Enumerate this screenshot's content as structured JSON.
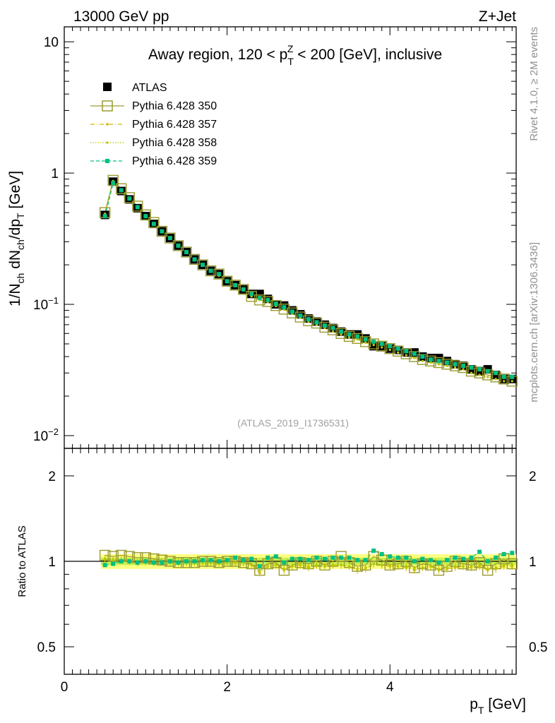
{
  "header": {
    "left_label": "13000 GeV pp",
    "right_label": "Z+Jet"
  },
  "side_labels": {
    "rivet": "Rivet 4.1.0, ≥ 2M events",
    "mcplots": "mcplots.cern.ch [arXiv:1306.3436]"
  },
  "colors": {
    "atlas": "#000000",
    "pythia_350": "#9a9a30",
    "pythia_357": "#d4b800",
    "pythia_358": "#b8c800",
    "pythia_359": "#00c080",
    "band_inner": "#c8f050",
    "band_outer": "#ffff80"
  },
  "chart_data": [
    {
      "type": "scatter",
      "panel": "main",
      "title": "Away region, 120 < p_T^Z < 200 [GeV], inclusive",
      "title_parts": {
        "pre": "Away region, 120 < p",
        "sub": "T",
        "sup": "Z",
        "post": " < 200 [GeV], inclusive"
      },
      "watermark": "(ATLAS_2019_I1736531)",
      "ylabel": "1/N_ch dN_ch/dp_T [GeV]",
      "ylabel_parts": {
        "a": "1/N",
        "a_sub": "ch",
        "b": " dN",
        "b_sub": "ch",
        "c": "/dp",
        "c_sub": "T",
        "d": " [GeV]"
      },
      "yscale": "log",
      "ylim": [
        0.008,
        13
      ],
      "xlim": [
        0,
        5.55
      ],
      "y_tick_labels": [
        {
          "value": 10,
          "label": "10"
        },
        {
          "value": 1,
          "label": "1"
        },
        {
          "value": 0.1,
          "label": "10",
          "exp": "−1"
        },
        {
          "value": 0.01,
          "label": "10",
          "exp": "−2"
        }
      ],
      "legend_position": "top-left",
      "x": [
        0.5,
        0.6,
        0.7,
        0.8,
        0.9,
        1.0,
        1.1,
        1.2,
        1.3,
        1.4,
        1.5,
        1.6,
        1.7,
        1.8,
        1.9,
        2.0,
        2.1,
        2.2,
        2.3,
        2.4,
        2.5,
        2.6,
        2.7,
        2.8,
        2.9,
        3.0,
        3.1,
        3.2,
        3.3,
        3.4,
        3.5,
        3.6,
        3.7,
        3.8,
        3.9,
        4.0,
        4.1,
        4.2,
        4.3,
        4.4,
        4.5,
        4.6,
        4.7,
        4.8,
        4.9,
        5.0,
        5.1,
        5.2,
        5.3,
        5.4,
        5.5
      ],
      "series": [
        {
          "name": "ATLAS",
          "values": [
            0.48,
            0.86,
            0.73,
            0.63,
            0.54,
            0.47,
            0.41,
            0.36,
            0.32,
            0.28,
            0.25,
            0.22,
            0.2,
            0.18,
            0.17,
            0.15,
            0.14,
            0.13,
            0.12,
            0.12,
            0.11,
            0.1,
            0.098,
            0.09,
            0.084,
            0.078,
            0.074,
            0.07,
            0.066,
            0.062,
            0.059,
            0.059,
            0.055,
            0.048,
            0.048,
            0.046,
            0.045,
            0.043,
            0.043,
            0.04,
            0.039,
            0.039,
            0.037,
            0.035,
            0.034,
            0.032,
            0.031,
            0.032,
            0.029,
            0.027,
            0.027
          ]
        },
        {
          "name": "Pythia 6.428 350",
          "values": [
            0.5,
            0.88,
            0.76,
            0.65,
            0.56,
            0.48,
            0.42,
            0.36,
            0.32,
            0.28,
            0.25,
            0.22,
            0.2,
            0.18,
            0.17,
            0.15,
            0.14,
            0.13,
            0.115,
            0.108,
            0.105,
            0.098,
            0.092,
            0.086,
            0.08,
            0.075,
            0.072,
            0.067,
            0.064,
            0.06,
            0.057,
            0.055,
            0.052,
            0.05,
            0.048,
            0.046,
            0.044,
            0.042,
            0.04,
            0.038,
            0.037,
            0.036,
            0.035,
            0.034,
            0.033,
            0.031,
            0.03,
            0.029,
            0.028,
            0.027,
            0.026
          ]
        },
        {
          "name": "Pythia 6.428 357",
          "values": [
            0.49,
            0.87,
            0.74,
            0.64,
            0.55,
            0.47,
            0.41,
            0.36,
            0.32,
            0.28,
            0.25,
            0.22,
            0.2,
            0.18,
            0.165,
            0.15,
            0.14,
            0.13,
            0.115,
            0.108,
            0.104,
            0.097,
            0.091,
            0.085,
            0.079,
            0.074,
            0.07,
            0.066,
            0.062,
            0.059,
            0.056,
            0.054,
            0.051,
            0.049,
            0.047,
            0.045,
            0.043,
            0.041,
            0.039,
            0.037,
            0.036,
            0.035,
            0.034,
            0.033,
            0.032,
            0.03,
            0.029,
            0.028,
            0.027,
            0.026,
            0.026
          ]
        },
        {
          "name": "Pythia 6.428 358",
          "values": [
            0.49,
            0.87,
            0.74,
            0.64,
            0.55,
            0.47,
            0.41,
            0.36,
            0.32,
            0.28,
            0.25,
            0.22,
            0.2,
            0.18,
            0.165,
            0.15,
            0.14,
            0.13,
            0.115,
            0.108,
            0.104,
            0.097,
            0.091,
            0.085,
            0.079,
            0.074,
            0.07,
            0.066,
            0.062,
            0.059,
            0.056,
            0.054,
            0.051,
            0.049,
            0.047,
            0.045,
            0.043,
            0.041,
            0.039,
            0.037,
            0.036,
            0.035,
            0.034,
            0.033,
            0.032,
            0.03,
            0.029,
            0.028,
            0.027,
            0.026,
            0.026
          ]
        },
        {
          "name": "Pythia 6.428 359",
          "values": [
            0.47,
            0.84,
            0.74,
            0.64,
            0.55,
            0.47,
            0.41,
            0.36,
            0.32,
            0.28,
            0.25,
            0.22,
            0.2,
            0.18,
            0.17,
            0.15,
            0.14,
            0.13,
            0.12,
            0.112,
            0.108,
            0.101,
            0.095,
            0.088,
            0.082,
            0.077,
            0.073,
            0.069,
            0.066,
            0.062,
            0.059,
            0.057,
            0.054,
            0.052,
            0.05,
            0.048,
            0.046,
            0.044,
            0.042,
            0.04,
            0.038,
            0.037,
            0.036,
            0.035,
            0.034,
            0.033,
            0.032,
            0.031,
            0.03,
            0.028,
            0.028
          ]
        }
      ]
    },
    {
      "type": "scatter",
      "panel": "ratio",
      "ylabel": "Ratio to ATLAS",
      "xlabel": "p_T [GeV]",
      "xlabel_parts": {
        "a": "p",
        "a_sub": "T",
        "b": " [GeV]"
      },
      "xlim": [
        0,
        5.55
      ],
      "ylim": [
        0.4,
        2.5
      ],
      "yscale": "log",
      "x_ticks": [
        0,
        2,
        4
      ],
      "x_tick_labels": [
        "0",
        "2",
        "4"
      ],
      "y_ticks": [
        0.5,
        1,
        2
      ],
      "y_tick_labels": [
        "0.5",
        "1",
        "2"
      ],
      "band": {
        "inner_halfwidth": 0.03,
        "outer_halfwidth": 0.06
      },
      "x": [
        0.5,
        0.6,
        0.7,
        0.8,
        0.9,
        1.0,
        1.1,
        1.2,
        1.3,
        1.4,
        1.5,
        1.6,
        1.7,
        1.8,
        1.9,
        2.0,
        2.1,
        2.2,
        2.3,
        2.4,
        2.5,
        2.6,
        2.7,
        2.8,
        2.9,
        3.0,
        3.1,
        3.2,
        3.3,
        3.4,
        3.5,
        3.6,
        3.7,
        3.8,
        3.9,
        4.0,
        4.1,
        4.2,
        4.3,
        4.4,
        4.5,
        4.6,
        4.7,
        4.8,
        4.9,
        5.0,
        5.1,
        5.2,
        5.3,
        5.4,
        5.5
      ],
      "series": [
        {
          "name": "Pythia 6.428 350",
          "values": [
            1.05,
            1.04,
            1.05,
            1.04,
            1.03,
            1.03,
            1.02,
            1.01,
            1.0,
            0.99,
            0.99,
            0.99,
            1.0,
            1.0,
            0.99,
            1.0,
            1.0,
            0.99,
            0.98,
            0.93,
            0.98,
            0.99,
            0.93,
            0.97,
            0.99,
            0.98,
            1.0,
            0.97,
            1.0,
            1.04,
            0.99,
            0.96,
            0.97,
            1.04,
            1.01,
            0.97,
            0.98,
            1.0,
            0.95,
            0.98,
            0.97,
            0.93,
            0.96,
            1.0,
            0.98,
            0.97,
            0.99,
            0.93,
            0.98,
            1.02,
            0.98
          ]
        },
        {
          "name": "Pythia 6.428 357",
          "values": [
            1.02,
            1.01,
            1.01,
            1.0,
            0.99,
            1.0,
            0.99,
            1.0,
            0.99,
            0.99,
            0.99,
            0.99,
            0.99,
            0.99,
            0.98,
            0.99,
            0.99,
            0.99,
            0.97,
            0.91,
            0.96,
            0.97,
            0.93,
            0.96,
            0.97,
            0.95,
            0.97,
            0.96,
            0.97,
            0.97,
            0.96,
            0.93,
            0.94,
            0.98,
            0.97,
            0.96,
            0.96,
            0.95,
            0.93,
            0.95,
            0.96,
            0.93,
            0.94,
            0.95,
            0.96,
            0.95,
            0.96,
            0.93,
            0.94,
            0.96,
            0.96
          ]
        },
        {
          "name": "Pythia 6.428 358",
          "values": [
            1.02,
            1.01,
            1.01,
            1.0,
            0.99,
            1.0,
            0.99,
            1.0,
            0.99,
            0.99,
            0.99,
            0.99,
            0.99,
            0.99,
            0.98,
            0.99,
            0.99,
            0.99,
            0.97,
            0.92,
            0.96,
            0.97,
            0.94,
            0.96,
            0.97,
            0.96,
            0.97,
            0.96,
            0.97,
            0.97,
            0.96,
            0.94,
            0.95,
            0.98,
            0.97,
            0.97,
            0.96,
            0.96,
            0.94,
            0.95,
            0.96,
            0.94,
            0.95,
            0.96,
            0.96,
            0.96,
            0.97,
            0.94,
            0.95,
            0.97,
            0.97
          ]
        },
        {
          "name": "Pythia 6.428 359",
          "values": [
            0.97,
            0.98,
            1.0,
            1.0,
            0.99,
            1.0,
            0.99,
            0.99,
            1.0,
            0.99,
            1.0,
            1.0,
            1.01,
            1.01,
            1.0,
            1.01,
            1.03,
            1.01,
            1.02,
            0.96,
            1.03,
            1.04,
            0.99,
            1.02,
            1.02,
            1.01,
            1.03,
            1.02,
            1.03,
            1.03,
            1.03,
            1.01,
            1.01,
            1.09,
            1.06,
            1.04,
            1.03,
            1.03,
            1.0,
            1.02,
            1.01,
            0.99,
            1.01,
            1.03,
            1.02,
            1.03,
            1.08,
            1.0,
            1.03,
            1.06,
            1.07
          ]
        }
      ]
    }
  ]
}
